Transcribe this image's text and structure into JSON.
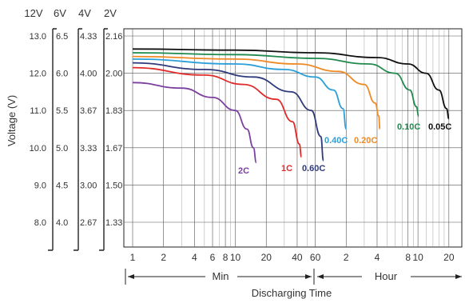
{
  "chart_data": {
    "type": "line",
    "ylabel": "Voltage (V)",
    "xlabel": "Discharging Time",
    "voltage_scales": [
      {
        "label": "12V",
        "ticks": [
          "13.0",
          "12.0",
          "11.0",
          "10.0",
          "9.0",
          "8.0"
        ]
      },
      {
        "label": "6V",
        "ticks": [
          "6.5",
          "6.0",
          "5.5",
          "5.0",
          "4.5",
          "4.0"
        ]
      },
      {
        "label": "4V",
        "ticks": [
          "4.33",
          "4.00",
          "3.67",
          "3.33",
          "3.00",
          "2.67"
        ]
      },
      {
        "label": "2V",
        "ticks": [
          "2.16",
          "2.00",
          "1.83",
          "1.67",
          "1.50",
          "1.33"
        ]
      }
    ],
    "ylim": [
      7.5,
      13.5
    ],
    "x_unit": "minutes",
    "x_scale": "log",
    "xlim": [
      1,
      1440
    ],
    "minute_ticks": [
      {
        "value": 1,
        "label": "1"
      },
      {
        "value": 2,
        "label": "2"
      },
      {
        "value": 4,
        "label": "4"
      },
      {
        "value": 6,
        "label": "6"
      },
      {
        "value": 8,
        "label": "8"
      },
      {
        "value": 10,
        "label": "10"
      },
      {
        "value": 20,
        "label": "20"
      },
      {
        "value": 40,
        "label": "40"
      },
      {
        "value": 60,
        "label": "60"
      }
    ],
    "hour_ticks": [
      {
        "value": 120,
        "label": "2"
      },
      {
        "value": 240,
        "label": "4"
      },
      {
        "value": 480,
        "label": "8"
      },
      {
        "value": 600,
        "label": "10"
      },
      {
        "value": 1200,
        "label": "20"
      }
    ],
    "time_ranges": [
      {
        "label": "Min",
        "from": 1,
        "to": 60
      },
      {
        "label": "Hour",
        "from": 60,
        "to": 1440
      }
    ],
    "series": [
      {
        "name": "0.05C",
        "color": "#111111",
        "points": [
          [
            1,
            12.65
          ],
          [
            10,
            12.62
          ],
          [
            60,
            12.55
          ],
          [
            240,
            12.42
          ],
          [
            480,
            12.25
          ],
          [
            720,
            12.0
          ],
          [
            960,
            11.55
          ],
          [
            1140,
            11.05
          ],
          [
            1200,
            10.78
          ]
        ]
      },
      {
        "name": "0.10C",
        "color": "#1f8a4c",
        "points": [
          [
            1,
            12.55
          ],
          [
            10,
            12.5
          ],
          [
            60,
            12.4
          ],
          [
            200,
            12.25
          ],
          [
            360,
            12.0
          ],
          [
            500,
            11.55
          ],
          [
            580,
            11.1
          ],
          [
            610,
            10.85
          ]
        ]
      },
      {
        "name": "0.20C",
        "color": "#f08a24",
        "points": [
          [
            1,
            12.45
          ],
          [
            10,
            12.38
          ],
          [
            40,
            12.25
          ],
          [
            100,
            12.05
          ],
          [
            180,
            11.7
          ],
          [
            230,
            11.2
          ],
          [
            250,
            10.85
          ],
          [
            255,
            10.5
          ]
        ]
      },
      {
        "name": "0.40C",
        "color": "#2b9fd9",
        "points": [
          [
            1,
            12.38
          ],
          [
            10,
            12.25
          ],
          [
            30,
            12.1
          ],
          [
            60,
            11.9
          ],
          [
            90,
            11.55
          ],
          [
            112,
            11.05
          ],
          [
            120,
            10.5
          ]
        ]
      },
      {
        "name": "0.60C",
        "color": "#2e3a7a",
        "points": [
          [
            1,
            12.28
          ],
          [
            5,
            12.1
          ],
          [
            15,
            11.9
          ],
          [
            35,
            11.5
          ],
          [
            55,
            11.0
          ],
          [
            68,
            10.3
          ],
          [
            72,
            9.65
          ]
        ]
      },
      {
        "name": "1C",
        "color": "#e12a2a",
        "points": [
          [
            1,
            12.15
          ],
          [
            5,
            11.95
          ],
          [
            12,
            11.7
          ],
          [
            25,
            11.3
          ],
          [
            36,
            10.7
          ],
          [
            42,
            10.1
          ],
          [
            44,
            9.75
          ]
        ]
      },
      {
        "name": "2C",
        "color": "#7b3fa0",
        "points": [
          [
            1,
            11.75
          ],
          [
            3,
            11.6
          ],
          [
            6,
            11.35
          ],
          [
            10,
            11.0
          ],
          [
            13,
            10.5
          ],
          [
            15,
            10.0
          ],
          [
            16,
            9.6
          ]
        ]
      }
    ]
  }
}
